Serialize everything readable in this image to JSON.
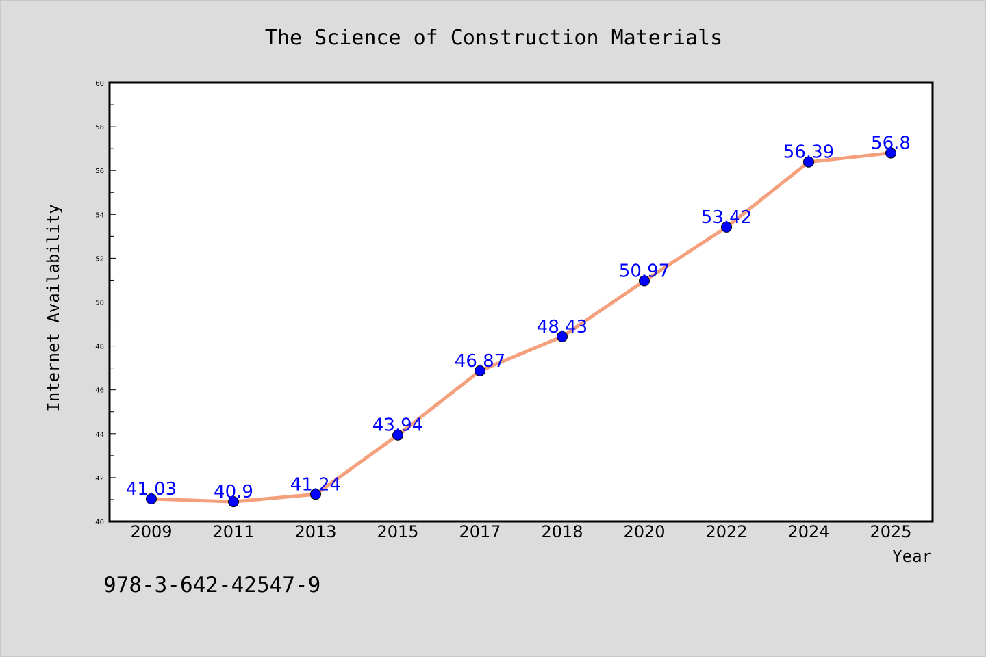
{
  "chart_data": {
    "type": "line",
    "title": "The Science of Construction Materials",
    "xlabel": "Year",
    "ylabel": "Internet Availability",
    "categories": [
      "2009",
      "2011",
      "2013",
      "2015",
      "2017",
      "2018",
      "2020",
      "2022",
      "2024",
      "2025"
    ],
    "series": [
      {
        "values": [
          41.03,
          40.9,
          41.24,
          43.94,
          46.87,
          48.43,
          50.97,
          53.42,
          56.39,
          56.8
        ],
        "data_labels": [
          "41.03",
          "40.9",
          "41.24",
          "43.94",
          "46.87",
          "48.43",
          "50.97",
          "53.42",
          "56.39",
          "56.8"
        ],
        "line_color": "#f4a07c",
        "marker_color": "#0000ff"
      }
    ],
    "ylim": [
      40,
      60
    ],
    "yticks": [
      "40",
      "42",
      "44",
      "46",
      "48",
      "50",
      "52",
      "54",
      "56",
      "58",
      "60"
    ],
    "grid": false,
    "legend": "none"
  },
  "footnote": "978-3-642-42547-9"
}
